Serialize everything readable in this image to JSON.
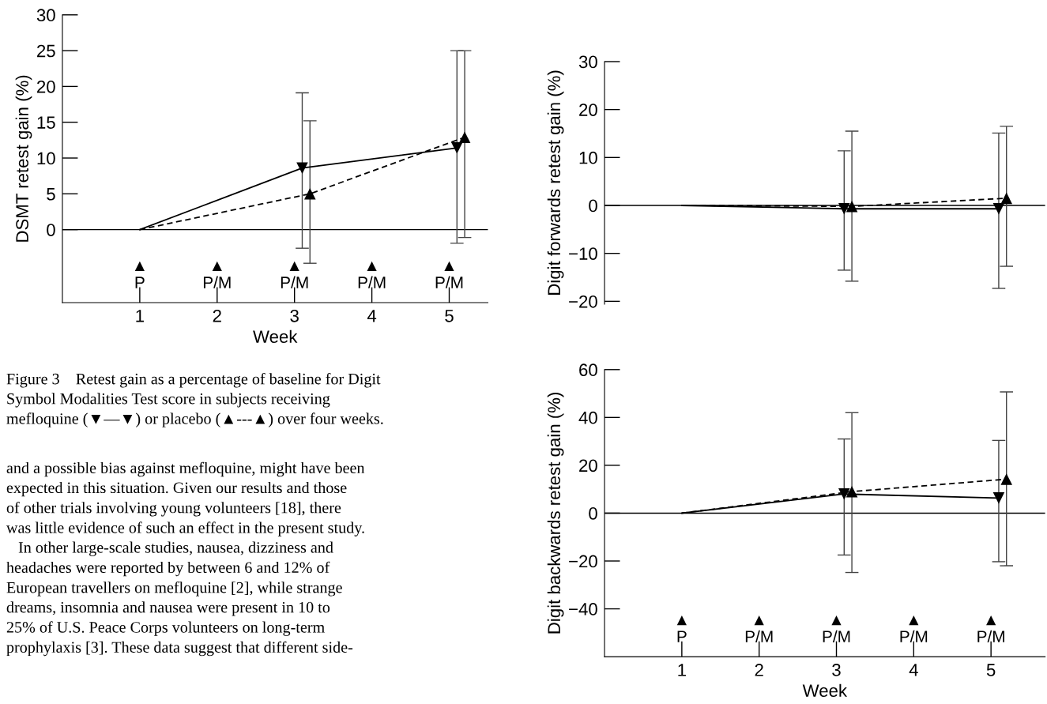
{
  "chart_data": [
    {
      "type": "line",
      "ylabel": "DSMT retest gain (%)",
      "xlabel": "Week",
      "xlim": [
        0,
        5.5
      ],
      "ylim": [
        -10.2,
        30
      ],
      "xticks": [
        1,
        2,
        3,
        4,
        5
      ],
      "yticks": [
        0,
        5,
        10,
        15,
        20,
        25,
        30
      ],
      "ref_lines": [
        {
          "axis": "y",
          "value": 0,
          "color": "#000000"
        }
      ],
      "series": [
        {
          "type": "line",
          "color": "#000000",
          "line_style": "solid",
          "marker": "none",
          "x": [
            1,
            3.1,
            5.1
          ],
          "values": [
            0,
            8.6,
            11.4
          ]
        },
        {
          "type": "line",
          "color": "#000000",
          "line_style": "dashed",
          "marker": "none",
          "x": [
            1,
            3.2,
            5.2
          ],
          "values": [
            0,
            5,
            12.9
          ]
        },
        {
          "type": "scatter",
          "color": "#000000",
          "marker": "triangle_down",
          "x": [
            3.1,
            5.1
          ],
          "values": [
            8.6,
            11.4
          ],
          "errors": [
            [
              -2.6,
              19.1
            ],
            [
              -1.9,
              25
            ]
          ]
        },
        {
          "type": "scatter",
          "color": "#000000",
          "marker": "triangle",
          "x": [
            3.2,
            5.2
          ],
          "values": [
            5,
            12.9
          ],
          "errors": [
            [
              -4.7,
              15.2
            ],
            [
              -1.1,
              25
            ]
          ]
        }
      ],
      "annotations": [
        "▲\nP",
        "▲\nP/M",
        "▲\nP/M",
        "▲\nP/M",
        "▲\nP/M",
        "Figure 3    Retest gain as a percentage of baseline for Digit\nSymbol Modalities Test score in subjects receiving\nmefloquine (▼—▼) or placebo (▲---▲) over four weeks.",
        "and a possible bias against mefloquine, might have been\nexpected in this situation. Given our results and those\nof other trials involving young volunteers [18], there\nwas little evidence of such an effect in the present study.\n   In other large-scale studies, nausea, dizziness and\nheadaches were reported by between 6 and 12% of\nEuropean travellers on mefloquine [2], while strange\ndreams, insomnia and nausea were present in 10 to\n25% of U.S. Peace Corps volunteers on long-term\nprophylaxis [3]. These data suggest that different side-"
      ]
    },
    {
      "type": "line",
      "ylabel": "Digit forwards retest gain (%)",
      "xlim": [
        0,
        5.7
      ],
      "ylim": [
        -20.6,
        30
      ],
      "yticks": [
        {
          "value": -20,
          "label": "−20"
        },
        {
          "value": -10,
          "label": "−10"
        },
        0,
        10,
        20,
        30
      ],
      "tick_labels": "y",
      "ref_lines": [
        {
          "axis": "y",
          "value": 0,
          "color": "#000000"
        }
      ],
      "series": [
        {
          "type": "line",
          "color": "#000000",
          "line_style": "solid",
          "marker": "none",
          "x": [
            1,
            3.1,
            5.1
          ],
          "values": [
            0,
            -0.7,
            -0.7
          ]
        },
        {
          "type": "line",
          "color": "#000000",
          "line_style": "dashed",
          "marker": "none",
          "x": [
            1,
            3.2,
            5.2
          ],
          "values": [
            0,
            -0.2,
            1.5
          ]
        },
        {
          "type": "scatter",
          "color": "#000000",
          "marker": "triangle_down",
          "x": [
            3.1,
            5.1
          ],
          "values": [
            -0.7,
            -0.7
          ],
          "errors": [
            [
              -13.5,
              11.4
            ],
            [
              -17.3,
              15.1
            ]
          ]
        },
        {
          "type": "scatter",
          "color": "#000000",
          "marker": "triangle",
          "x": [
            3.2,
            5.2
          ],
          "values": [
            -0.2,
            1.5
          ],
          "errors": [
            [
              -15.8,
              15.5
            ],
            [
              -12.7,
              16.5
            ]
          ]
        }
      ]
    },
    {
      "type": "line",
      "ylabel": "Digit backwards retest gain (%)",
      "xlabel": "Week",
      "xlim": [
        0,
        5.7
      ],
      "ylim": [
        -60,
        60
      ],
      "xticks": [
        1,
        2,
        3,
        4,
        5
      ],
      "yticks": [
        {
          "value": -40,
          "label": "−40"
        },
        {
          "value": -20,
          "label": "−20"
        },
        0,
        20,
        40,
        60
      ],
      "ref_lines": [
        {
          "axis": "y",
          "value": 0,
          "color": "#000000"
        }
      ],
      "series": [
        {
          "type": "line",
          "color": "#000000",
          "line_style": "solid",
          "marker": "none",
          "x": [
            1,
            3.1,
            5.1
          ],
          "values": [
            0,
            8,
            6.3
          ]
        },
        {
          "type": "line",
          "color": "#000000",
          "line_style": "dashed",
          "marker": "none",
          "x": [
            1,
            3.2,
            5.2
          ],
          "values": [
            0,
            9,
            14.2
          ]
        },
        {
          "type": "scatter",
          "color": "#000000",
          "marker": "triangle_down",
          "x": [
            3.1,
            5.1
          ],
          "values": [
            8,
            6.3
          ],
          "errors": [
            [
              -17.5,
              31
            ],
            [
              -20.3,
              30.4
            ]
          ]
        },
        {
          "type": "scatter",
          "color": "#000000",
          "marker": "triangle",
          "x": [
            3.2,
            5.2
          ],
          "values": [
            9,
            14.2
          ],
          "errors": [
            [
              -24.8,
              42
            ],
            [
              -22,
              50.7
            ]
          ]
        }
      ],
      "annotations": [
        "▲\nP",
        "▲\nP/M",
        "▲\nP/M",
        "▲\nP/M",
        "▲\nP/M"
      ]
    }
  ]
}
